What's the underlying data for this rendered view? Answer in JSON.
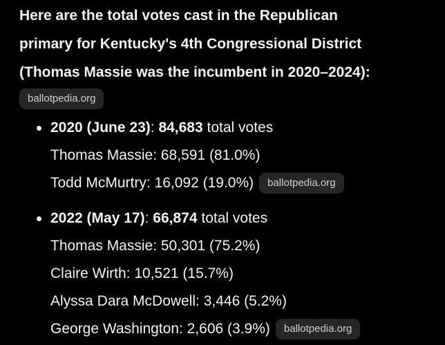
{
  "intro": {
    "lines": [
      "Here are the total votes cast in the Republican",
      "primary for Kentucky's 4th Congressional District",
      "(Thomas Massie was the incumbent in 2020–2024):"
    ],
    "source": "ballotpedia.org"
  },
  "items": [
    {
      "label": "2020 (June 23)",
      "separator": ":",
      "total": "84,683",
      "suffix": "total votes",
      "lines": [
        "Thomas Massie: 68,591 (81.0%)",
        "Todd McMurtry: 16,092 (19.0%)"
      ],
      "source": "ballotpedia.org"
    },
    {
      "label": "2022 (May 17)",
      "separator": ":",
      "total": "66,874",
      "suffix": "total votes",
      "lines": [
        "Thomas Massie: 50,301 (75.2%)",
        "Claire Wirth: 10,521 (15.7%)",
        "Alyssa Dara McDowell: 3,446 (5.2%)",
        "George Washington: 2,606 (3.9%)"
      ],
      "source": "ballotpedia.org"
    }
  ]
}
